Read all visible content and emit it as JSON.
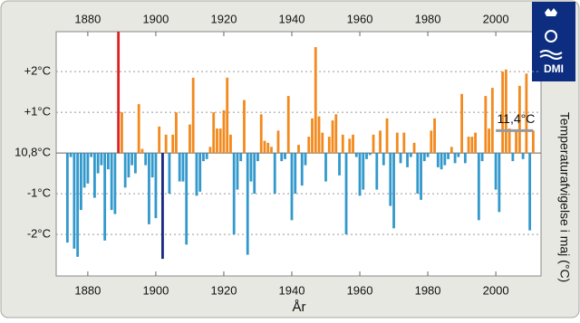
{
  "logo": "DMI",
  "chart_data": {
    "type": "bar",
    "x_label": "År",
    "y_label": "Temperaturafvigelse i maj (°C)",
    "x": [
      1874,
      1875,
      1876,
      1877,
      1878,
      1879,
      1880,
      1881,
      1882,
      1883,
      1884,
      1885,
      1886,
      1887,
      1888,
      1889,
      1890,
      1891,
      1892,
      1893,
      1894,
      1895,
      1896,
      1897,
      1898,
      1899,
      1900,
      1901,
      1902,
      1903,
      1904,
      1905,
      1906,
      1907,
      1908,
      1909,
      1910,
      1911,
      1912,
      1913,
      1914,
      1915,
      1916,
      1917,
      1918,
      1919,
      1920,
      1921,
      1922,
      1923,
      1924,
      1925,
      1926,
      1927,
      1928,
      1929,
      1930,
      1931,
      1932,
      1933,
      1934,
      1935,
      1936,
      1937,
      1938,
      1939,
      1940,
      1941,
      1942,
      1943,
      1944,
      1945,
      1946,
      1947,
      1948,
      1949,
      1950,
      1951,
      1952,
      1953,
      1954,
      1955,
      1956,
      1957,
      1958,
      1959,
      1960,
      1961,
      1962,
      1963,
      1964,
      1965,
      1966,
      1967,
      1968,
      1969,
      1970,
      1971,
      1972,
      1973,
      1974,
      1975,
      1976,
      1977,
      1978,
      1979,
      1980,
      1981,
      1982,
      1983,
      1984,
      1985,
      1986,
      1987,
      1988,
      1989,
      1990,
      1991,
      1992,
      1993,
      1994,
      1995,
      1996,
      1997,
      1998,
      1999,
      2000,
      2001,
      2002,
      2003,
      2004,
      2005,
      2006,
      2007,
      2008,
      2009,
      2010,
      2011
    ],
    "values": [
      -2.2,
      -0.1,
      -2.35,
      -2.55,
      -1.4,
      -0.85,
      -0.75,
      -0.1,
      -1.1,
      -0.5,
      -0.3,
      -2.15,
      -0.4,
      -1.4,
      -1.5,
      2.98,
      1.0,
      -0.85,
      -0.6,
      -0.3,
      -0.5,
      1.2,
      0.1,
      -0.3,
      -1.75,
      -0.6,
      -1.6,
      0.65,
      -2.6,
      0.45,
      -1.0,
      0.45,
      1.0,
      -0.7,
      -0.7,
      -2.25,
      0.7,
      1.85,
      -1.05,
      -0.95,
      -0.2,
      -0.15,
      0.15,
      1.0,
      0.6,
      0.6,
      1.05,
      1.85,
      0.45,
      -2.0,
      -0.9,
      -0.2,
      1.3,
      -2.5,
      -0.7,
      -1.0,
      -0.2,
      0.95,
      0.3,
      0.25,
      0.15,
      -1.0,
      0.55,
      -0.2,
      -0.15,
      1.4,
      -1.65,
      -1.0,
      0.2,
      -0.8,
      -0.3,
      0.4,
      0.85,
      2.6,
      0.9,
      0.5,
      -0.7,
      0.4,
      0.8,
      0.95,
      -0.55,
      0.45,
      -2.0,
      0.35,
      0.45,
      -0.1,
      -1.05,
      -0.9,
      -0.15,
      -0.05,
      0.45,
      -0.9,
      0.55,
      -0.3,
      0.85,
      -1.3,
      -1.85,
      0.5,
      -0.25,
      0.5,
      -0.35,
      -0.1,
      0.25,
      -1.0,
      -1.15,
      -0.2,
      -0.1,
      0.55,
      0.85,
      -0.35,
      -0.4,
      -0.3,
      -0.15,
      0.15,
      -0.25,
      -0.1,
      1.45,
      -0.25,
      0.4,
      0.4,
      0.5,
      -1.65,
      -0.2,
      1.4,
      0.6,
      1.6,
      -0.9,
      -1.45,
      2.0,
      2.05,
      0.6,
      -0.2,
      0.55,
      1.65,
      -0.15,
      1.95,
      -1.9,
      0.55
    ],
    "positive_color": "#f28a1e",
    "negative_color": "#3399cc",
    "highlights": [
      {
        "year": 1889,
        "color": "#dd2020"
      },
      {
        "year": 1902,
        "color": "#1c2a80"
      }
    ],
    "reference": {
      "value": 0.55,
      "x": [
        2000,
        2011
      ],
      "label": "11,4°C",
      "color": "#999999"
    },
    "xlim": [
      1870.7,
      2013.3
    ],
    "xticks": [
      1880,
      1900,
      1920,
      1940,
      1960,
      1980,
      2000
    ],
    "ylim": [
      -3.02,
      2.98
    ],
    "yticks": [
      {
        "value": 2,
        "label": "+2°C"
      },
      {
        "value": 1,
        "label": "+1°C"
      },
      {
        "value": 0,
        "label": "10,8°C"
      },
      {
        "value": -1,
        "label": "-1°C"
      },
      {
        "value": -2,
        "label": "-2°C"
      }
    ],
    "grid": true
  }
}
